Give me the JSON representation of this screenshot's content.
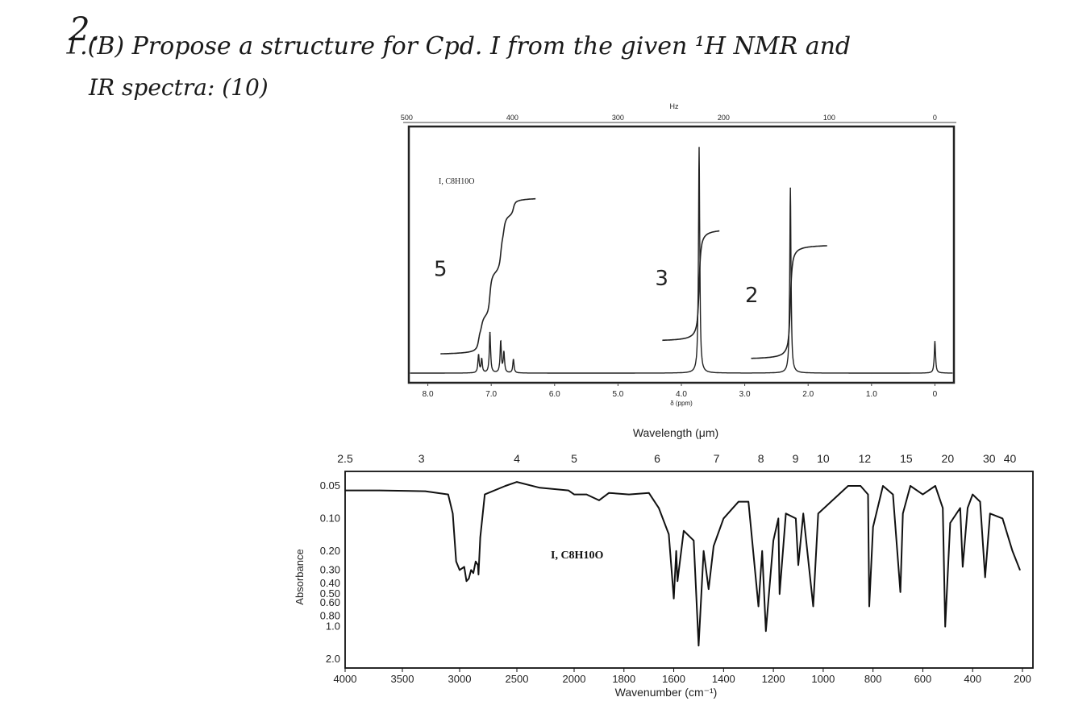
{
  "question": {
    "number": "2.",
    "line1": "1.(B) Propose a structure for Cpd. I from the given ¹H NMR and",
    "line2": "IR spectra: (10)"
  },
  "chart_data": [
    {
      "type": "line",
      "name": "nmr",
      "compound_label": "I, C8H10O",
      "xlabel": "δ (ppm)",
      "x_ticks": [
        "8.0",
        "7.0",
        "6.0",
        "5.0",
        "4.0",
        "3.0",
        "2.0",
        "1.0",
        "0"
      ],
      "x_tick_values": [
        8,
        7,
        6,
        5,
        4,
        3,
        2,
        1,
        0
      ],
      "xlim": [
        8.3,
        -0.3
      ],
      "top_axis_label": "Hz",
      "top_ticks": [
        "500",
        "400",
        "300",
        "200",
        "100",
        "0"
      ],
      "top_tick_values": [
        500,
        400,
        300,
        200,
        100,
        0
      ],
      "peaks": [
        {
          "shift": 7.2,
          "height": 0.08
        },
        {
          "shift": 7.15,
          "height": 0.06
        },
        {
          "shift": 7.02,
          "height": 0.18
        },
        {
          "shift": 6.85,
          "height": 0.14
        },
        {
          "shift": 6.8,
          "height": 0.09
        },
        {
          "shift": 6.65,
          "height": 0.06
        },
        {
          "shift": 3.72,
          "height": 1.0
        },
        {
          "shift": 2.28,
          "height": 0.82
        },
        {
          "shift": 0.0,
          "height": 0.14
        }
      ],
      "integrations": [
        {
          "label": "5",
          "value": 5,
          "from": 7.8,
          "to": 6.3,
          "start": 0.08,
          "end": 0.78
        },
        {
          "label": "3",
          "value": 3,
          "from": 4.3,
          "to": 3.4,
          "start": 0.14,
          "end": 0.64
        },
        {
          "label": "2",
          "value": 2,
          "from": 2.9,
          "to": 1.7,
          "start": 0.06,
          "end": 0.57
        }
      ]
    },
    {
      "type": "line",
      "name": "ir",
      "compound_label": "I, C8H10O",
      "top_axis_label": "Wavelength (μm)",
      "top_ticks": [
        "2.5",
        "3",
        "4",
        "5",
        "6",
        "7",
        "8",
        "9",
        "10",
        "12",
        "15",
        "20",
        "30",
        "40"
      ],
      "top_tick_values": [
        2.5,
        3,
        4,
        5,
        6,
        7,
        8,
        9,
        10,
        12,
        15,
        20,
        30,
        40
      ],
      "xlabel": "Wavenumber (cm⁻¹)",
      "x_ticks": [
        "4000",
        "3500",
        "3000",
        "2500",
        "2000",
        "1800",
        "1600",
        "1400",
        "1200",
        "1000",
        "800",
        "600",
        "400",
        "200"
      ],
      "x_tick_values": [
        4000,
        3500,
        3000,
        2500,
        2000,
        1800,
        1600,
        1400,
        1200,
        1000,
        800,
        600,
        400,
        200
      ],
      "ylabel": "Absorbance",
      "y_ticks": [
        "0.05",
        "0.10",
        "0.20",
        "0.30",
        "0.40",
        "0.50",
        "0.60",
        "0.80",
        "1.0",
        "2.0"
      ],
      "y_tick_values": [
        0.05,
        0.1,
        0.2,
        0.3,
        0.4,
        0.5,
        0.6,
        0.8,
        1.0,
        2.0
      ],
      "x_scale": "two linear segments (4000-2000 and 2000-200 cm⁻¹)",
      "y_scale": "log",
      "spectrum": [
        [
          4000,
          0.055
        ],
        [
          3700,
          0.055
        ],
        [
          3300,
          0.056
        ],
        [
          3100,
          0.06
        ],
        [
          3060,
          0.09
        ],
        [
          3030,
          0.25
        ],
        [
          3000,
          0.3
        ],
        [
          2960,
          0.28
        ],
        [
          2940,
          0.38
        ],
        [
          2920,
          0.36
        ],
        [
          2900,
          0.3
        ],
        [
          2880,
          0.32
        ],
        [
          2860,
          0.25
        ],
        [
          2840,
          0.27
        ],
        [
          2835,
          0.33
        ],
        [
          2820,
          0.15
        ],
        [
          2780,
          0.06
        ],
        [
          2600,
          0.05
        ],
        [
          2500,
          0.046
        ],
        [
          2300,
          0.052
        ],
        [
          2050,
          0.055
        ],
        [
          2000,
          0.06
        ],
        [
          1950,
          0.06
        ],
        [
          1900,
          0.068
        ],
        [
          1860,
          0.058
        ],
        [
          1780,
          0.06
        ],
        [
          1700,
          0.058
        ],
        [
          1660,
          0.08
        ],
        [
          1620,
          0.14
        ],
        [
          1600,
          0.55
        ],
        [
          1590,
          0.2
        ],
        [
          1585,
          0.38
        ],
        [
          1560,
          0.13
        ],
        [
          1520,
          0.16
        ],
        [
          1500,
          1.5
        ],
        [
          1480,
          0.2
        ],
        [
          1460,
          0.45
        ],
        [
          1440,
          0.18
        ],
        [
          1400,
          0.1
        ],
        [
          1340,
          0.07
        ],
        [
          1300,
          0.07
        ],
        [
          1260,
          0.65
        ],
        [
          1245,
          0.2
        ],
        [
          1230,
          1.1
        ],
        [
          1200,
          0.16
        ],
        [
          1180,
          0.1
        ],
        [
          1175,
          0.5
        ],
        [
          1150,
          0.09
        ],
        [
          1110,
          0.1
        ],
        [
          1100,
          0.27
        ],
        [
          1080,
          0.09
        ],
        [
          1040,
          0.65
        ],
        [
          1020,
          0.09
        ],
        [
          900,
          0.05
        ],
        [
          850,
          0.05
        ],
        [
          820,
          0.06
        ],
        [
          815,
          0.65
        ],
        [
          800,
          0.12
        ],
        [
          760,
          0.05
        ],
        [
          720,
          0.06
        ],
        [
          690,
          0.48
        ],
        [
          680,
          0.09
        ],
        [
          650,
          0.05
        ],
        [
          600,
          0.06
        ],
        [
          550,
          0.05
        ],
        [
          520,
          0.08
        ],
        [
          510,
          1.0
        ],
        [
          490,
          0.11
        ],
        [
          450,
          0.08
        ],
        [
          440,
          0.28
        ],
        [
          420,
          0.08
        ],
        [
          400,
          0.06
        ],
        [
          370,
          0.07
        ],
        [
          350,
          0.35
        ],
        [
          330,
          0.09
        ],
        [
          280,
          0.1
        ],
        [
          240,
          0.2
        ],
        [
          210,
          0.3
        ]
      ]
    }
  ]
}
